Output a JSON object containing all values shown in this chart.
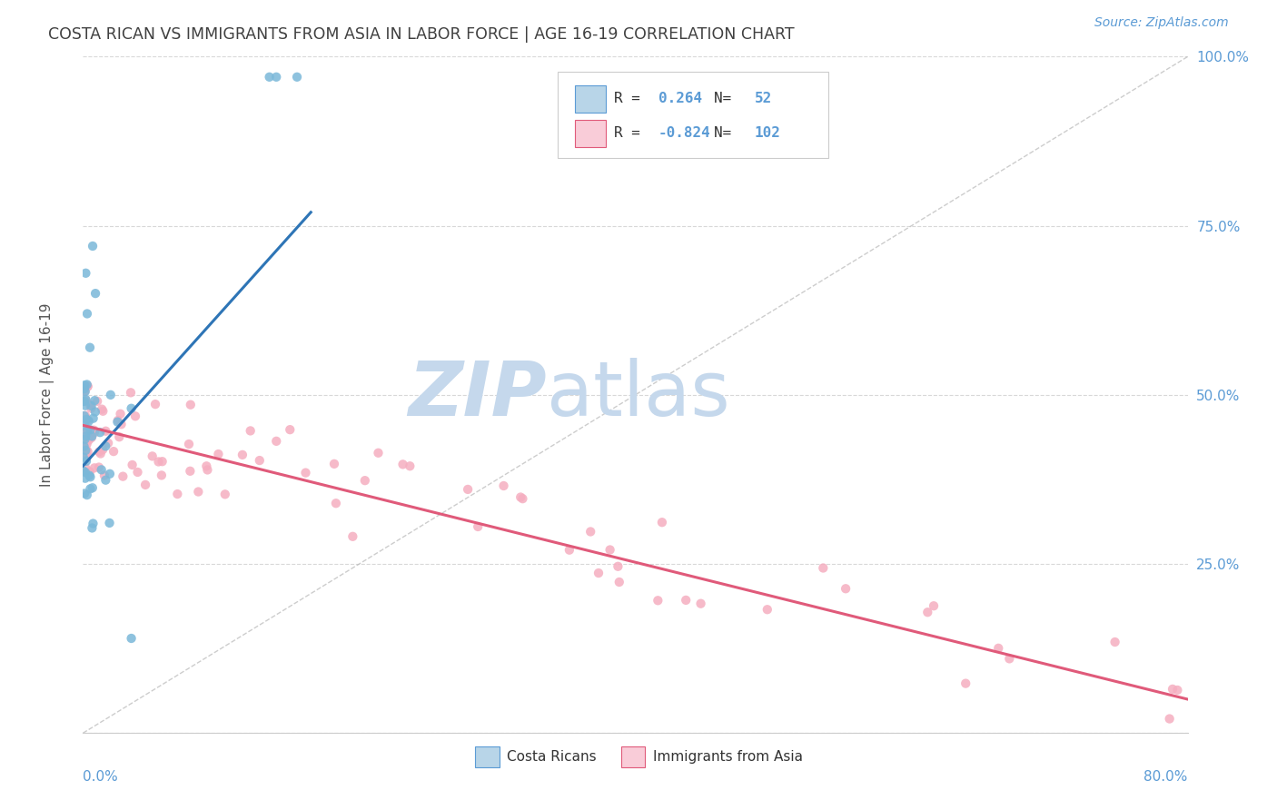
{
  "title": "COSTA RICAN VS IMMIGRANTS FROM ASIA IN LABOR FORCE | AGE 16-19 CORRELATION CHART",
  "source": "Source: ZipAtlas.com",
  "ylabel": "In Labor Force | Age 16-19",
  "yticks": [
    0.0,
    0.25,
    0.5,
    0.75,
    1.0
  ],
  "ytick_labels": [
    "",
    "25.0%",
    "50.0%",
    "75.0%",
    "100.0%"
  ],
  "xmin": 0.0,
  "xmax": 0.8,
  "ymin": 0.0,
  "ymax": 1.0,
  "legend_R1": "0.264",
  "legend_N1": "52",
  "legend_R2": "-0.824",
  "legend_N2": "102",
  "blue_dot_color": "#7ab8d9",
  "pink_dot_color": "#f5aec0",
  "blue_line_color": "#2e75b6",
  "pink_line_color": "#e05a7a",
  "blue_legend_fill": "#b8d5e8",
  "pink_legend_fill": "#f9ccd8",
  "blue_legend_edge": "#5b9bd5",
  "pink_legend_edge": "#e05a7a",
  "watermark_ZIP_color": "#c5d8ec",
  "watermark_atlas_color": "#c5d8ec",
  "grid_color": "#d8d8d8",
  "ref_line_color": "#b8b8b8",
  "title_color": "#404040",
  "axis_label_color": "#5b9bd5",
  "blue_trend_x0": 0.0,
  "blue_trend_y0": 0.395,
  "blue_trend_x1": 0.165,
  "blue_trend_y1": 0.77,
  "pink_trend_x0": 0.0,
  "pink_trend_y0": 0.455,
  "pink_trend_x1": 0.8,
  "pink_trend_y1": 0.05
}
